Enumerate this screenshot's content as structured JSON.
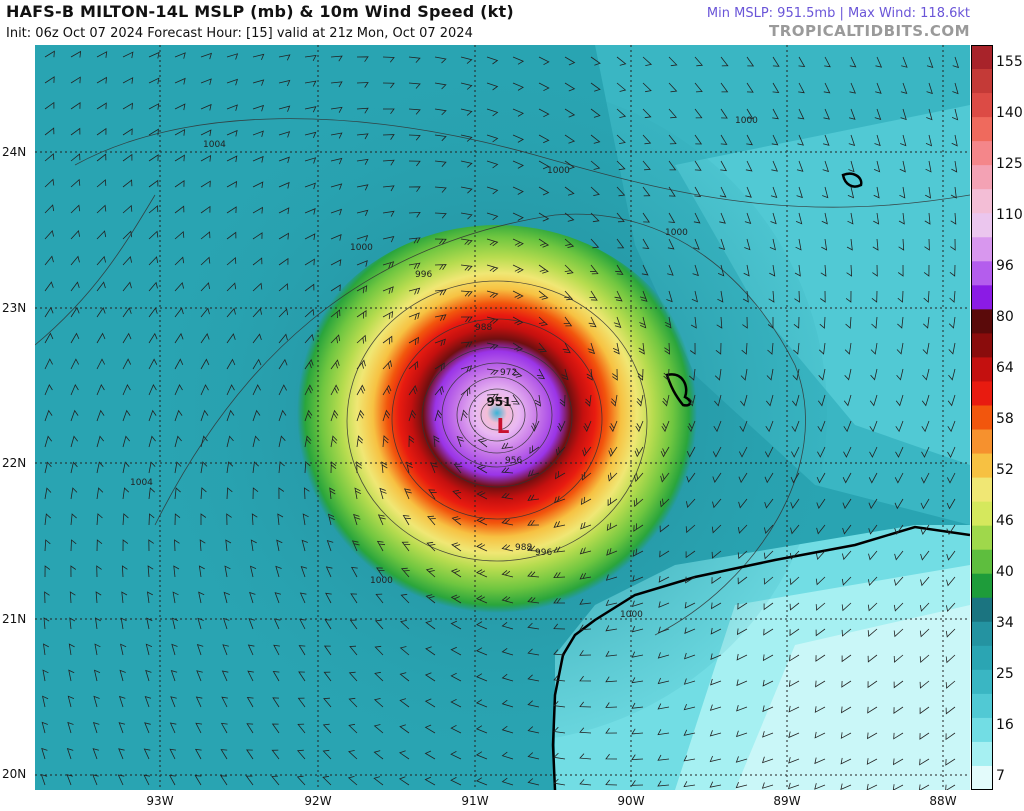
{
  "header": {
    "title": "HAFS-B MILTON-14L MSLP (mb) & 10m Wind Speed (kt)",
    "init_line": "Init: 06z Oct 07 2024   Forecast Hour: [15]   valid at 21z Mon, Oct 07 2024",
    "stats": "Min MSLP: 951.5mb | Max Wind: 118.6kt",
    "site": "TROPICALTIDBITS.COM"
  },
  "map": {
    "lat_labels": [
      "24N",
      "23N",
      "22N",
      "21N",
      "20N"
    ],
    "lon_labels": [
      "93W",
      "92W",
      "91W",
      "90W",
      "89W",
      "88W"
    ],
    "isobar_labels": [
      "1004",
      "1000",
      "1000",
      "1000",
      "1000",
      "996",
      "988",
      "972",
      "956",
      "988",
      "996",
      "1000",
      "1000",
      "1004"
    ],
    "low_center": {
      "symbol": "L",
      "pressure": "951"
    },
    "colors": {
      "ocean_base": "#29a4b2",
      "coast": "#000000",
      "isobar": "#333333"
    }
  },
  "colorbar": {
    "labels": [
      "155",
      "140",
      "125",
      "110",
      "96",
      "80",
      "64",
      "58",
      "52",
      "46",
      "40",
      "34",
      "25",
      "16",
      "7"
    ],
    "colors": [
      "#a8232a",
      "#c43a37",
      "#dc4b45",
      "#ef6a5d",
      "#f4868a",
      "#f3a2b4",
      "#f3bed6",
      "#ebc6ee",
      "#d897ee",
      "#b45ded",
      "#8b1be5",
      "#5a0a0a",
      "#8a0c0c",
      "#c4100f",
      "#e81b10",
      "#f2560d",
      "#f6912e",
      "#f7c142",
      "#f0e774",
      "#d5e85d",
      "#9fd84b",
      "#5ebe3e",
      "#1e9c3a",
      "#1b7480",
      "#2493a1",
      "#2ba5b3",
      "#3ab6c3",
      "#51c9d4",
      "#72dde4",
      "#a6f0f2",
      "#e3fbfb"
    ]
  }
}
